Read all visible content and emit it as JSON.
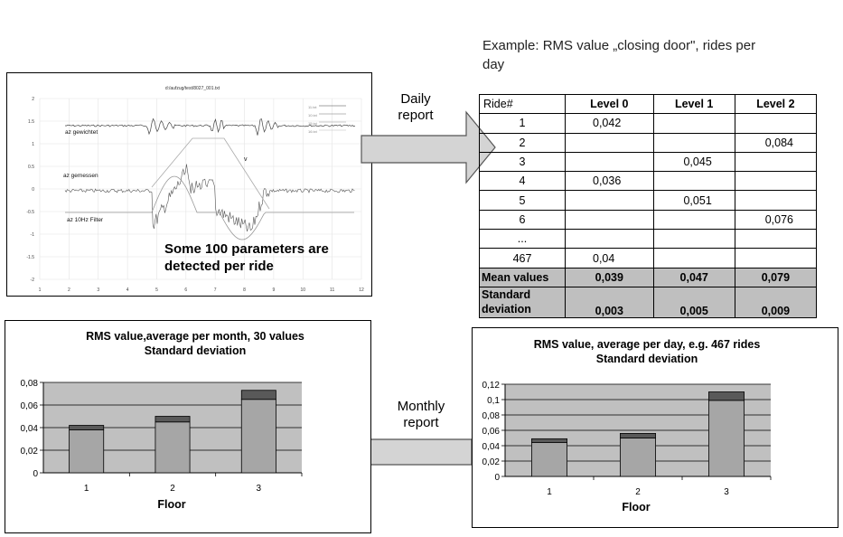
{
  "caption": {
    "line1": "Example: RMS value „closing door\", rides per",
    "line2": "day"
  },
  "signal_panel": {
    "file_title": "d:/aufzug/test/8027_001.txt",
    "traces": [
      {
        "name": "az gewichtet"
      },
      {
        "name": "az gemessen"
      },
      {
        "name": "az 10Hz Filter"
      }
    ],
    "legend_items": [
      "11.txt",
      "10.txt",
      "15.txt",
      "16.txt"
    ],
    "y_ticks": [
      "2",
      "1.5",
      "1",
      "0.5",
      "0",
      "-0.5",
      "-1",
      "-1.5",
      "-2"
    ],
    "x_ticks": [
      "1",
      "2",
      "3",
      "4",
      "5",
      "6",
      "7",
      "8",
      "9",
      "10",
      "11",
      "12"
    ],
    "marker": "v",
    "note_line1": "Some 100 parameters are",
    "note_line2": "detected per ride"
  },
  "daily_arrow": {
    "line1": "Daily",
    "line2": "report"
  },
  "monthly_arrow": {
    "line1": "Monthly",
    "line2": "report"
  },
  "rms_table": {
    "headers": [
      "Ride#",
      "Level 0",
      "Level 1",
      "Level 2"
    ],
    "rows": [
      {
        "ride": "1",
        "l0": "0,042",
        "l1": "",
        "l2": ""
      },
      {
        "ride": "2",
        "l0": "",
        "l1": "",
        "l2": "0,084"
      },
      {
        "ride": "3",
        "l0": "",
        "l1": "0,045",
        "l2": ""
      },
      {
        "ride": "4",
        "l0": "0,036",
        "l1": "",
        "l2": ""
      },
      {
        "ride": "5",
        "l0": "",
        "l1": "0,051",
        "l2": ""
      },
      {
        "ride": "6",
        "l0": "",
        "l1": "",
        "l2": "0,076"
      },
      {
        "ride": "...",
        "l0": "",
        "l1": "",
        "l2": ""
      },
      {
        "ride": "467",
        "l0": "0,04",
        "l1": "",
        "l2": ""
      }
    ],
    "mean": {
      "label": "Mean values",
      "l0": "0,039",
      "l1": "0,047",
      "l2": "0,079"
    },
    "std": {
      "label1": "Standard",
      "label2": "deviation",
      "l0": "0,003",
      "l1": "0,005",
      "l2": "0,009"
    }
  },
  "chart_data": [
    {
      "type": "bar",
      "title_line1": "RMS value,average per month, 30 values",
      "title_line2": "Standard deviation",
      "xlabel": "Floor",
      "ylabel": "",
      "categories": [
        "1",
        "2",
        "3"
      ],
      "series": [
        {
          "name": "",
          "values": [
            0.038,
            0.045,
            0.065
          ]
        },
        {
          "name": "",
          "values": [
            0.004,
            0.005,
            0.008
          ]
        }
      ],
      "stacked": true,
      "ylim": [
        0,
        0.08
      ],
      "yticks": [
        "0",
        "0,02",
        "0,04",
        "0,06",
        "0,08"
      ],
      "ytick_values": [
        0,
        0.02,
        0.04,
        0.06,
        0.08
      ],
      "grid": true,
      "colors": {
        "plot_bg": "#c0c0c0",
        "bar": "#a6a6a6",
        "cap": "#595959"
      }
    },
    {
      "type": "bar",
      "title_line1": "RMS value, average per day, e.g. 467 rides",
      "title_line2": "Standard deviation",
      "xlabel": "Floor",
      "ylabel": "",
      "categories": [
        "1",
        "2",
        "3"
      ],
      "series": [
        {
          "name": "",
          "values": [
            0.044,
            0.05,
            0.099
          ]
        },
        {
          "name": "",
          "values": [
            0.005,
            0.006,
            0.011
          ]
        }
      ],
      "stacked": true,
      "ylim": [
        0,
        0.12
      ],
      "yticks": [
        "0",
        "0,02",
        "0,04",
        "0,06",
        "0,08",
        "0,1",
        "0,12"
      ],
      "ytick_values": [
        0,
        0.02,
        0.04,
        0.06,
        0.08,
        0.1,
        0.12
      ],
      "grid": true,
      "colors": {
        "plot_bg": "#c0c0c0",
        "bar": "#a6a6a6",
        "cap": "#595959"
      }
    }
  ]
}
